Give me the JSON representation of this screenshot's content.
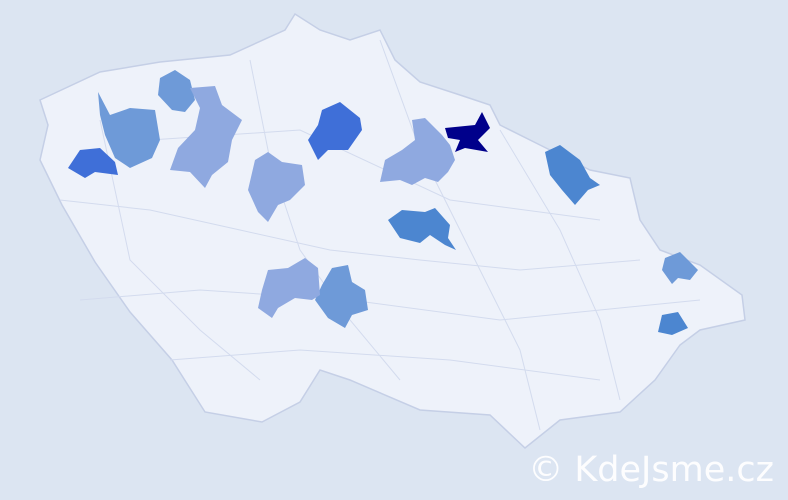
{
  "map": {
    "base_color": "#eef2fa",
    "border_color": "#c5cfe6",
    "background": "#dce5f2",
    "highlight_colors": {
      "darkest": "#00008b",
      "dark": "#3f6fd8",
      "medium": "#4c86d0",
      "light_medium": "#6e9ad8",
      "light": "#8fa9e0"
    }
  },
  "watermark": "© KdeJsme.cz"
}
